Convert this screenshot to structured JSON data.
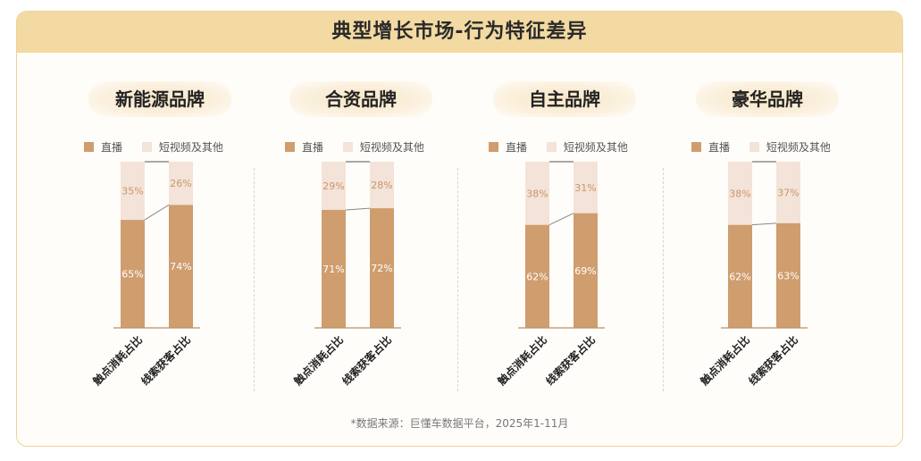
{
  "title": "典型增长市场-行为特征差异",
  "legend": {
    "live": "直播",
    "short": "短视频及其他"
  },
  "colors": {
    "live": "#cf9d6e",
    "short": "#f4e3d8",
    "title_bg": "#f3d9a2"
  },
  "footnote": "*数据来源：巨懂车数据平台，2025年1-11月",
  "panels": [
    {
      "name": "新能源品牌"
    },
    {
      "name": "合资品牌"
    },
    {
      "name": "自主品牌"
    },
    {
      "name": "豪华品牌"
    }
  ],
  "chart_data": [
    {
      "type": "bar",
      "title": "新能源品牌",
      "categories": [
        "触点消耗占比",
        "线索获客占比"
      ],
      "series": [
        {
          "name": "直播",
          "values": [
            65,
            74
          ],
          "labels": [
            "65%",
            "74%"
          ]
        },
        {
          "name": "短视频及其他",
          "values": [
            35,
            26
          ],
          "labels": [
            "35%",
            "26%"
          ]
        }
      ]
    },
    {
      "type": "bar",
      "title": "合资品牌",
      "categories": [
        "触点消耗占比",
        "线索获客占比"
      ],
      "series": [
        {
          "name": "直播",
          "values": [
            71,
            72
          ],
          "labels": [
            "71%",
            "72%"
          ]
        },
        {
          "name": "短视频及其他",
          "values": [
            29,
            28
          ],
          "labels": [
            "29%",
            "28%"
          ]
        }
      ]
    },
    {
      "type": "bar",
      "title": "自主品牌",
      "categories": [
        "触点消耗占比",
        "线索获客占比"
      ],
      "series": [
        {
          "name": "直播",
          "values": [
            62,
            69
          ],
          "labels": [
            "62%",
            "69%"
          ]
        },
        {
          "name": "短视频及其他",
          "values": [
            38,
            31
          ],
          "labels": [
            "38%",
            "31%"
          ]
        }
      ]
    },
    {
      "type": "bar",
      "title": "豪华品牌",
      "categories": [
        "触点消耗占比",
        "线索获客占比"
      ],
      "series": [
        {
          "name": "直播",
          "values": [
            62,
            63
          ],
          "labels": [
            "62%",
            "63%"
          ]
        },
        {
          "name": "短视频及其他",
          "values": [
            38,
            37
          ],
          "labels": [
            "38%",
            "37%"
          ]
        }
      ]
    }
  ]
}
